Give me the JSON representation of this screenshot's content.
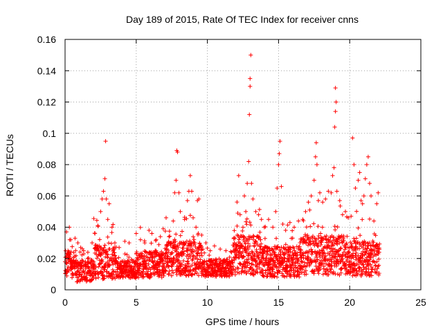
{
  "chart_data": {
    "type": "scatter",
    "title": "Day 189 of 2015, Rate Of TEC Index for receiver cnns",
    "xlabel": "GPS time / hours",
    "ylabel": "ROTI / TECUs",
    "xlim": [
      0,
      25
    ],
    "ylim": [
      0,
      0.16
    ],
    "grid": true,
    "marker": "+",
    "color": "#ff0000",
    "x_ticks": [
      0,
      5,
      10,
      15,
      20,
      25
    ],
    "x_tick_labels": [
      "0",
      "5",
      "10",
      "15",
      "20",
      "25"
    ],
    "y_ticks": [
      0,
      0.02,
      0.04,
      0.06,
      0.08,
      0.1,
      0.12,
      0.14,
      0.16
    ],
    "y_tick_labels": [
      "0",
      "0.02",
      "0.04",
      "0.06",
      "0.08",
      "0.1",
      "0.12",
      "0.14",
      "0.16"
    ],
    "series": [
      {
        "name": "ROTI",
        "points": [
          [
            0.0,
            0.018
          ],
          [
            0.1,
            0.037
          ],
          [
            0.2,
            0.025
          ],
          [
            0.3,
            0.04
          ],
          [
            0.4,
            0.032
          ],
          [
            0.5,
            0.014
          ],
          [
            0.7,
            0.033
          ],
          [
            0.9,
            0.03
          ],
          [
            1.1,
            0.027
          ],
          [
            1.3,
            0.025
          ],
          [
            1.6,
            0.024
          ],
          [
            1.9,
            0.03
          ],
          [
            2.1,
            0.036
          ],
          [
            2.3,
            0.041
          ],
          [
            2.5,
            0.05
          ],
          [
            2.6,
            0.058
          ],
          [
            2.7,
            0.063
          ],
          [
            2.8,
            0.071
          ],
          [
            2.85,
            0.095
          ],
          [
            2.9,
            0.058
          ],
          [
            3.0,
            0.045
          ],
          [
            3.1,
            0.055
          ],
          [
            3.3,
            0.04
          ],
          [
            3.5,
            0.03
          ],
          [
            3.8,
            0.027
          ],
          [
            4.2,
            0.031
          ],
          [
            4.5,
            0.03
          ],
          [
            5.0,
            0.036
          ],
          [
            5.3,
            0.032
          ],
          [
            5.6,
            0.03
          ],
          [
            5.9,
            0.038
          ],
          [
            6.1,
            0.036
          ],
          [
            6.4,
            0.032
          ],
          [
            6.7,
            0.034
          ],
          [
            6.9,
            0.039
          ],
          [
            7.1,
            0.046
          ],
          [
            7.3,
            0.034
          ],
          [
            7.6,
            0.044
          ],
          [
            7.7,
            0.062
          ],
          [
            7.8,
            0.07
          ],
          [
            7.85,
            0.089
          ],
          [
            7.9,
            0.088
          ],
          [
            8.0,
            0.062
          ],
          [
            8.1,
            0.05
          ],
          [
            8.4,
            0.045
          ],
          [
            8.6,
            0.057
          ],
          [
            8.7,
            0.063
          ],
          [
            8.8,
            0.073
          ],
          [
            8.9,
            0.063
          ],
          [
            9.0,
            0.046
          ],
          [
            9.2,
            0.04
          ],
          [
            9.3,
            0.057
          ],
          [
            9.4,
            0.058
          ],
          [
            9.6,
            0.035
          ],
          [
            9.9,
            0.03
          ],
          [
            10.2,
            0.025
          ],
          [
            10.5,
            0.028
          ],
          [
            10.9,
            0.026
          ],
          [
            11.3,
            0.025
          ],
          [
            11.7,
            0.024
          ],
          [
            11.9,
            0.03
          ],
          [
            12.1,
            0.035
          ],
          [
            12.2,
            0.073
          ],
          [
            12.3,
            0.048
          ],
          [
            12.5,
            0.04
          ],
          [
            12.6,
            0.06
          ],
          [
            12.7,
            0.05
          ],
          [
            12.8,
            0.068
          ],
          [
            12.9,
            0.082
          ],
          [
            12.95,
            0.112
          ],
          [
            13.0,
            0.13
          ],
          [
            13.0,
            0.135
          ],
          [
            13.05,
            0.15
          ],
          [
            13.1,
            0.068
          ],
          [
            13.2,
            0.058
          ],
          [
            13.4,
            0.05
          ],
          [
            13.6,
            0.048
          ],
          [
            13.8,
            0.045
          ],
          [
            14.0,
            0.04
          ],
          [
            14.3,
            0.045
          ],
          [
            14.6,
            0.04
          ],
          [
            14.8,
            0.05
          ],
          [
            14.9,
            0.065
          ],
          [
            15.0,
            0.08
          ],
          [
            15.05,
            0.087
          ],
          [
            15.1,
            0.095
          ],
          [
            15.2,
            0.066
          ],
          [
            15.3,
            0.042
          ],
          [
            15.5,
            0.038
          ],
          [
            15.8,
            0.043
          ],
          [
            16.1,
            0.04
          ],
          [
            16.4,
            0.044
          ],
          [
            16.7,
            0.045
          ],
          [
            16.9,
            0.05
          ],
          [
            17.1,
            0.056
          ],
          [
            17.3,
            0.06
          ],
          [
            17.5,
            0.07
          ],
          [
            17.6,
            0.085
          ],
          [
            17.65,
            0.094
          ],
          [
            17.7,
            0.08
          ],
          [
            17.8,
            0.057
          ],
          [
            17.9,
            0.062
          ],
          [
            18.1,
            0.056
          ],
          [
            18.3,
            0.058
          ],
          [
            18.5,
            0.063
          ],
          [
            18.7,
            0.062
          ],
          [
            18.8,
            0.073
          ],
          [
            18.9,
            0.078
          ],
          [
            18.95,
            0.104
          ],
          [
            19.0,
            0.114
          ],
          [
            19.05,
            0.12
          ],
          [
            19.0,
            0.129
          ],
          [
            19.1,
            0.063
          ],
          [
            19.3,
            0.057
          ],
          [
            19.5,
            0.048
          ],
          [
            19.7,
            0.05
          ],
          [
            19.9,
            0.046
          ],
          [
            20.1,
            0.047
          ],
          [
            20.3,
            0.08
          ],
          [
            20.2,
            0.097
          ],
          [
            20.4,
            0.065
          ],
          [
            20.6,
            0.07
          ],
          [
            20.7,
            0.075
          ],
          [
            20.8,
            0.057
          ],
          [
            20.9,
            0.055
          ],
          [
            21.0,
            0.06
          ],
          [
            21.1,
            0.071
          ],
          [
            21.2,
            0.08
          ],
          [
            21.3,
            0.085
          ],
          [
            21.4,
            0.068
          ],
          [
            21.5,
            0.06
          ],
          [
            21.7,
            0.044
          ],
          [
            21.9,
            0.055
          ],
          [
            22.0,
            0.062
          ]
        ]
      }
    ],
    "density": {
      "x_start": 0,
      "x_end": 22.1,
      "x_step": 0.014,
      "floor": 0.005,
      "base_noise": [
        0.008,
        0.006,
        0.008,
        0.012
      ],
      "segments": [
        [
          0,
          0.8,
          0.016,
          0.012
        ],
        [
          0.8,
          2.0,
          0.012,
          0.01
        ],
        [
          2.0,
          3.6,
          0.018,
          0.016
        ],
        [
          3.6,
          5.0,
          0.013,
          0.008
        ],
        [
          5.0,
          7.0,
          0.016,
          0.012
        ],
        [
          7.0,
          9.6,
          0.02,
          0.016
        ],
        [
          9.6,
          11.8,
          0.014,
          0.008
        ],
        [
          11.8,
          13.8,
          0.022,
          0.018
        ],
        [
          13.8,
          16.5,
          0.018,
          0.014
        ],
        [
          16.5,
          19.6,
          0.022,
          0.018
        ],
        [
          19.6,
          22.1,
          0.02,
          0.016
        ]
      ]
    }
  }
}
